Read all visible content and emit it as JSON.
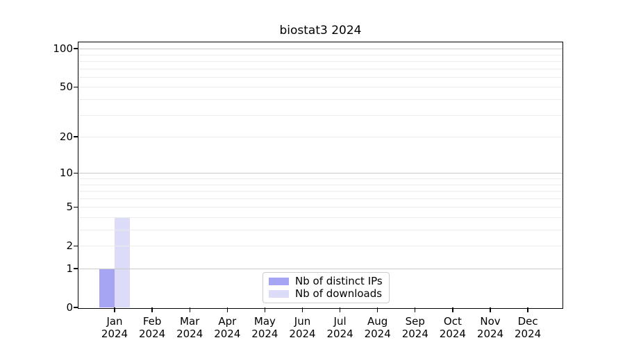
{
  "chart_data": {
    "type": "bar",
    "title": "biostat3 2024",
    "categories": [
      "Jan",
      "Feb",
      "Mar",
      "Apr",
      "May",
      "Jun",
      "Jul",
      "Aug",
      "Sep",
      "Oct",
      "Nov",
      "Dec"
    ],
    "year_label": "2024",
    "series": [
      {
        "name": "Nb of distinct IPs",
        "color": "#a5a5f4",
        "values": [
          1,
          0,
          0,
          0,
          0,
          0,
          0,
          0,
          0,
          0,
          0,
          0
        ]
      },
      {
        "name": "Nb of downloads",
        "color": "#dcdcf8",
        "values": [
          4,
          0,
          0,
          0,
          0,
          0,
          0,
          0,
          0,
          0,
          0,
          0
        ]
      }
    ],
    "y_axis": {
      "scale": "log10(1+x)",
      "ylim": [
        0,
        100
      ],
      "tick_values": [
        0,
        1,
        2,
        5,
        10,
        20,
        50,
        100
      ],
      "major_grid_values": [
        1,
        10,
        100
      ],
      "minor_grid_values": [
        2,
        3,
        4,
        5,
        6,
        7,
        8,
        9,
        20,
        30,
        40,
        50,
        60,
        70,
        80,
        90
      ]
    },
    "legend": {
      "position": "lower center"
    },
    "colors": {
      "major_grid": "#c8c8c8",
      "minor_grid": "#ececec",
      "axis": "#000000",
      "background": "#ffffff"
    }
  }
}
